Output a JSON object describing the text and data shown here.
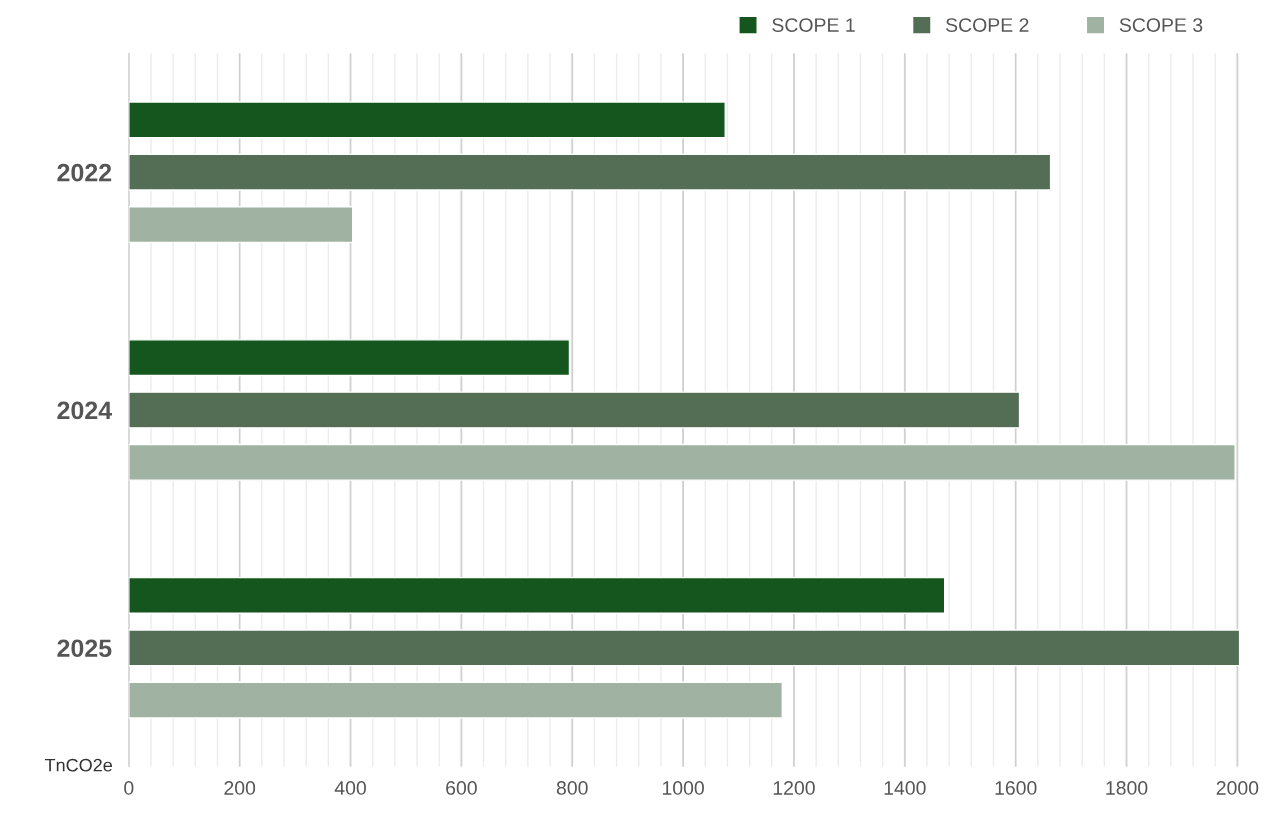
{
  "chart_data": {
    "type": "bar",
    "orientation": "horizontal",
    "categories": [
      "2022",
      "2024",
      "2025"
    ],
    "series": [
      {
        "name": "SCOPE 1",
        "color": "#14561e",
        "values": [
          1076,
          795,
          1472
        ]
      },
      {
        "name": "SCOPE 2",
        "color": "#536e55",
        "values": [
          1663,
          1607,
          2004
        ]
      },
      {
        "name": "SCOPE 3",
        "color": "#a0b2a2",
        "values": [
          404,
          1996,
          1179
        ]
      }
    ],
    "xlabel": "TnCO2e",
    "xlim": [
      0,
      2010
    ],
    "xticks": [
      0,
      200,
      400,
      600,
      800,
      1000,
      1200,
      1400,
      1600,
      1800,
      2000
    ],
    "grid": "x",
    "legend": "top right"
  }
}
